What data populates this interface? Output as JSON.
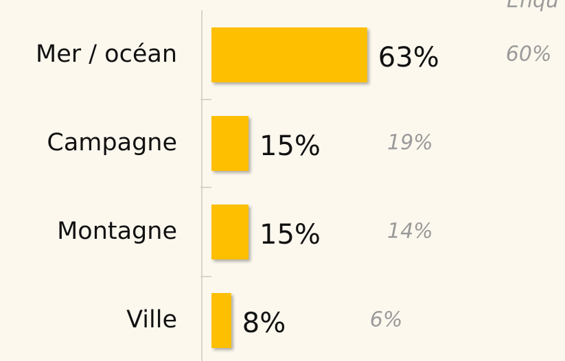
{
  "chart_data": {
    "type": "bar",
    "orientation": "horizontal",
    "annotation": "Enqu",
    "categories": [
      "Mer / océan",
      "Campagne",
      "Montagne",
      "Ville"
    ],
    "values": [
      63,
      15,
      15,
      8
    ],
    "value_labels": [
      "63%",
      "15%",
      "15%",
      "8%"
    ],
    "comparison_values": [
      60,
      19,
      14,
      6
    ],
    "comparison_labels": [
      "60%",
      "19%",
      "14%",
      "6%"
    ],
    "color": "#fdbf00",
    "xlim": [
      0,
      100
    ]
  }
}
